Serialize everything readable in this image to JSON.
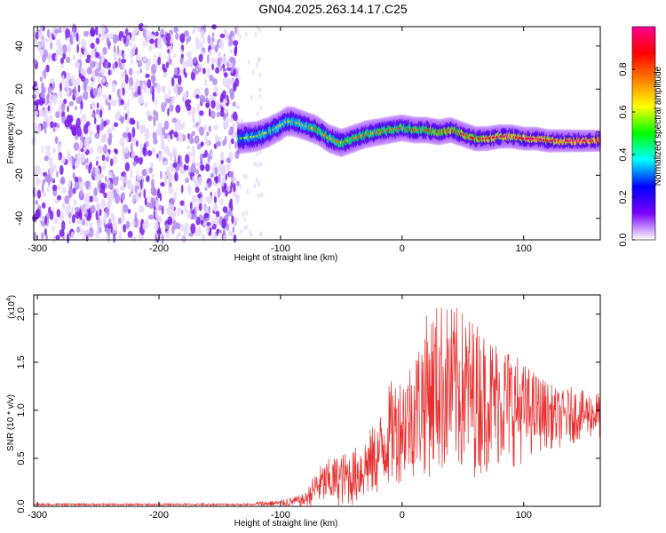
{
  "title": "GN04.2025.263.14.17.C25",
  "chart_data": [
    {
      "type": "heatmap",
      "title": "GN04.2025.263.14.17.C25",
      "xlabel": "Height of straight line (km)",
      "ylabel": "Frequency (Hz)",
      "xlim": [
        -303,
        163
      ],
      "ylim": [
        -50,
        49
      ],
      "xticks": [
        -300,
        -200,
        -100,
        0,
        100
      ],
      "yticks": [
        -40,
        -20,
        0,
        20,
        40
      ],
      "noise_region_x": [
        -303,
        -135
      ],
      "signal_region_x": [
        -135,
        163
      ],
      "ridge": {
        "x": [
          -135,
          -120,
          -110,
          -100,
          -95,
          -90,
          -80,
          -70,
          -60,
          -50,
          -40,
          -30,
          -20,
          -10,
          0,
          10,
          20,
          30,
          40,
          50,
          60,
          70,
          80,
          90,
          100,
          110,
          120,
          130,
          140,
          150,
          163
        ],
        "frequency": [
          -3,
          -2,
          0,
          3,
          5,
          5,
          3,
          1,
          -3,
          -5,
          -3,
          -1,
          0,
          1,
          2,
          1,
          1,
          0,
          1,
          -1,
          -3,
          -3,
          -2,
          -2,
          -3,
          -3,
          -4,
          -4,
          -4,
          -4,
          -4
        ]
      },
      "colorbar": {
        "label": "Normalized spectral amplitude",
        "range": [
          0.0,
          1.0
        ],
        "ticks": [
          "0.0",
          "0.2",
          "0.4",
          "0.6",
          "0.8"
        ],
        "colors": [
          "#ffffff",
          "#7a00ff",
          "#0000ff",
          "#00ffff",
          "#00ff00",
          "#ffff00",
          "#ff8000",
          "#ff0000",
          "#ff0090"
        ]
      }
    },
    {
      "type": "line",
      "xlabel": "Height of straight line (km)",
      "ylabel": "SNR (10 * v/v)",
      "scale_label": "(x10",
      "scale_exponent": "4",
      "scale_close": ")",
      "xlim": [
        -303,
        163
      ],
      "ylim": [
        0.0,
        2.2
      ],
      "xticks": [
        -300,
        -200,
        -100,
        0,
        100
      ],
      "yticks": [
        "0.0",
        "0.5",
        "1.0",
        "1.5",
        "2.0"
      ],
      "color": "#e83030",
      "envelope": {
        "x": [
          -303,
          -150,
          -120,
          -100,
          -90,
          -80,
          -70,
          -60,
          -50,
          -40,
          -30,
          -20,
          -10,
          0,
          10,
          20,
          30,
          40,
          50,
          60,
          70,
          80,
          90,
          100,
          110,
          120,
          130,
          140,
          150,
          163
        ],
        "low": [
          0.0,
          0.0,
          0.0,
          0.0,
          0.0,
          0.0,
          0.0,
          0.0,
          0.0,
          0.0,
          0.05,
          0.1,
          0.2,
          0.25,
          0.3,
          0.3,
          0.3,
          0.3,
          0.3,
          0.3,
          0.35,
          0.4,
          0.4,
          0.45,
          0.55,
          0.6,
          0.6,
          0.65,
          0.7,
          0.7
        ],
        "high": [
          0.03,
          0.03,
          0.05,
          0.07,
          0.1,
          0.13,
          0.4,
          0.5,
          0.55,
          0.6,
          0.75,
          0.9,
          1.3,
          1.4,
          1.6,
          2.0,
          2.15,
          2.1,
          2.05,
          1.95,
          1.8,
          1.75,
          1.65,
          1.5,
          1.4,
          1.3,
          1.2,
          1.25,
          1.2,
          1.2
        ]
      }
    }
  ]
}
